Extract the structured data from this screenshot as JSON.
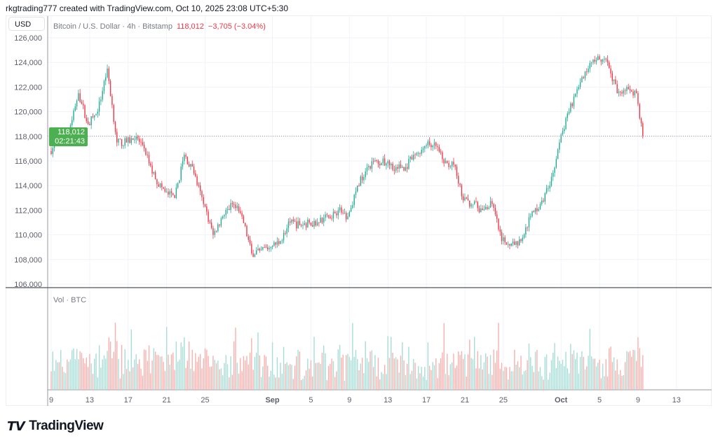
{
  "header": {
    "caption": "rkgtrading777 created with TradingView.com, Oct 10, 2025 23:08 UTC+5:30"
  },
  "currency": "USD",
  "legend": {
    "symbol": "Bitcoin / U.S. Dollar · 4h · Bitstamp",
    "last": "118,012",
    "change": "−3,705 (−3.04%)"
  },
  "volume_label": "Vol · BTC",
  "last_price": {
    "price": "118,012",
    "countdown": "02:21:43",
    "value": 118012
  },
  "colors": {
    "up": "#22ab94",
    "down": "#f23645",
    "vol_up": "#a6ddd6",
    "vol_down": "#f9b0ad",
    "last": "#4caf50"
  },
  "logo": {
    "text": "TradingView"
  },
  "chart_data": {
    "type": "candlestick",
    "title": "Bitcoin / U.S. Dollar · 4h · Bitstamp",
    "ylim": [
      106000,
      126600
    ],
    "yticks": [
      106000,
      108000,
      110000,
      112000,
      114000,
      116000,
      118000,
      120000,
      122000,
      124000,
      126000
    ],
    "ytick_labels": [
      "106,000",
      "108,000",
      "110,000",
      "112,000",
      "114,000",
      "116,000",
      "118,000",
      "120,000",
      "122,000",
      "124,000",
      "126,000"
    ],
    "xtick_labels": [
      {
        "day": 0,
        "label": "9"
      },
      {
        "day": 4,
        "label": "13"
      },
      {
        "day": 8,
        "label": "17"
      },
      {
        "day": 12,
        "label": "21"
      },
      {
        "day": 16,
        "label": "25"
      },
      {
        "day": 23,
        "label": "Sep",
        "bold": true
      },
      {
        "day": 27,
        "label": "5"
      },
      {
        "day": 31,
        "label": "9"
      },
      {
        "day": 35,
        "label": "13"
      },
      {
        "day": 39,
        "label": "17"
      },
      {
        "day": 43,
        "label": "21"
      },
      {
        "day": 47,
        "label": "25"
      },
      {
        "day": 53,
        "label": "Oct",
        "bold": true
      },
      {
        "day": 57,
        "label": "5"
      },
      {
        "day": 61,
        "label": "9"
      },
      {
        "day": 65,
        "label": "13"
      }
    ],
    "start_price": 116800,
    "daily_closes_from_aug9": [
      117500,
      118500,
      121500,
      119000,
      120000,
      123500,
      117500,
      117500,
      118000,
      116500,
      114500,
      113500,
      113000,
      116500,
      115000,
      112500,
      110000,
      111500,
      112500,
      111500,
      108500,
      108800,
      109000,
      109500,
      111000,
      110800,
      111000,
      111000,
      111500,
      112000,
      111500,
      114000,
      115500,
      116000,
      115800,
      115500,
      115500,
      116500,
      117200,
      117500,
      115800,
      115700,
      112800,
      112500,
      112000,
      112500,
      109500,
      109300,
      109500,
      111500,
      112500,
      114000,
      117500,
      120000,
      122000,
      123500,
      124500,
      124000,
      121500,
      122000,
      121500,
      118012
    ],
    "bars_per_day": 6
  }
}
